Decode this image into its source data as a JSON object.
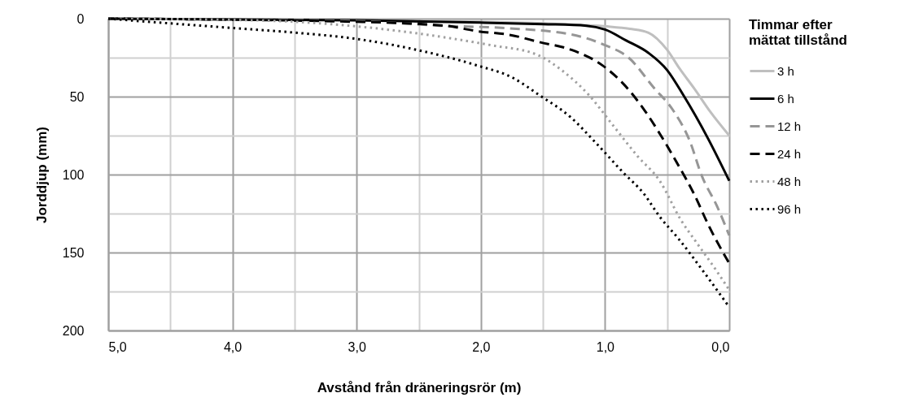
{
  "chart_data": {
    "type": "line",
    "xlabel": "Avstånd från dräneringsrör (m)",
    "ylabel": "Jorddjup (mm)",
    "legend_title": "Timmar efter mättat tillstånd",
    "xlim": [
      5,
      0
    ],
    "ylim": [
      200,
      0
    ],
    "xticks": [
      {
        "value": 5,
        "label": "5,0"
      },
      {
        "value": 4.5,
        "label": null
      },
      {
        "value": 4,
        "label": "4,0"
      },
      {
        "value": 3.5,
        "label": null
      },
      {
        "value": 3,
        "label": "3,0"
      },
      {
        "value": 2.5,
        "label": null
      },
      {
        "value": 2,
        "label": "2,0"
      },
      {
        "value": 1.5,
        "label": null
      },
      {
        "value": 1,
        "label": "1,0"
      },
      {
        "value": 0.5,
        "label": null
      },
      {
        "value": 0,
        "label": "0,0"
      }
    ],
    "yticks": [
      0,
      {
        "value": 25,
        "label": null
      },
      50,
      {
        "value": 75,
        "label": null
      },
      100,
      {
        "value": 125,
        "label": null
      },
      150,
      {
        "value": 175,
        "label": null
      },
      200
    ],
    "grid": true,
    "legend": "right",
    "marker": "none",
    "series": [
      {
        "name": "3 h",
        "color": "#bfbfbf",
        "line_style": "solid",
        "x": [
          5,
          3,
          2,
          1.5,
          1.2,
          0.98,
          0.8,
          0.65,
          0.5,
          0.4,
          0.28,
          0.15,
          0
        ],
        "values": [
          0,
          1,
          2,
          3,
          4,
          5,
          6.5,
          9,
          20,
          32,
          45,
          60,
          75
        ]
      },
      {
        "name": "6 h",
        "color": "#000000",
        "line_style": "solid",
        "x": [
          5,
          3,
          2,
          1.5,
          1.15,
          1.0,
          0.83,
          0.65,
          0.5,
          0.37,
          0.17,
          0
        ],
        "values": [
          0,
          1,
          2.5,
          3.5,
          4.5,
          7,
          14,
          22,
          33,
          49,
          77,
          104
        ]
      },
      {
        "name": "12 h",
        "color": "#969696",
        "line_style": "dashed",
        "x": [
          5,
          3,
          2.33,
          1.81,
          1.28,
          1.0,
          0.81,
          0.61,
          0.45,
          0.32,
          0.22,
          0.1,
          0
        ],
        "values": [
          0,
          1.5,
          4.5,
          6,
          10,
          17,
          25,
          44,
          59,
          78,
          101,
          120,
          139
        ]
      },
      {
        "name": "24 h",
        "color": "#000000",
        "line_style": "dashed",
        "x": [
          5,
          3,
          2.29,
          2.03,
          1.76,
          1.53,
          1.27,
          1.02,
          0.85,
          0.68,
          0.55,
          0.41,
          0.28,
          0.17,
          0
        ],
        "values": [
          0,
          2,
          4.5,
          8,
          10.5,
          15,
          20,
          30,
          42,
          59,
          75,
          94,
          113,
          132,
          157
        ]
      },
      {
        "name": "48 h",
        "color": "#a0a0a0",
        "line_style": "dotted",
        "x": [
          5,
          3.84,
          2.99,
          2.46,
          2.25,
          1.92,
          1.55,
          1.35,
          1.13,
          0.94,
          0.74,
          0.56,
          0.39,
          0.26,
          0.1,
          0
        ],
        "values": [
          0,
          1,
          5,
          10,
          12.5,
          17,
          23,
          33,
          49,
          68,
          88,
          104,
          129,
          144,
          162,
          174
        ]
      },
      {
        "name": "96 h",
        "color": "#000000",
        "line_style": "dotted",
        "x": [
          5,
          4.54,
          3.99,
          3.49,
          3.0,
          2.46,
          2.03,
          1.74,
          1.53,
          1.28,
          1.07,
          0.85,
          0.69,
          0.56,
          0.41,
          0.2,
          0
        ],
        "values": [
          0,
          2.8,
          6,
          9,
          13,
          21,
          30,
          38,
          49,
          63,
          80,
          99,
          112,
          127,
          141,
          163,
          185
        ]
      }
    ]
  }
}
